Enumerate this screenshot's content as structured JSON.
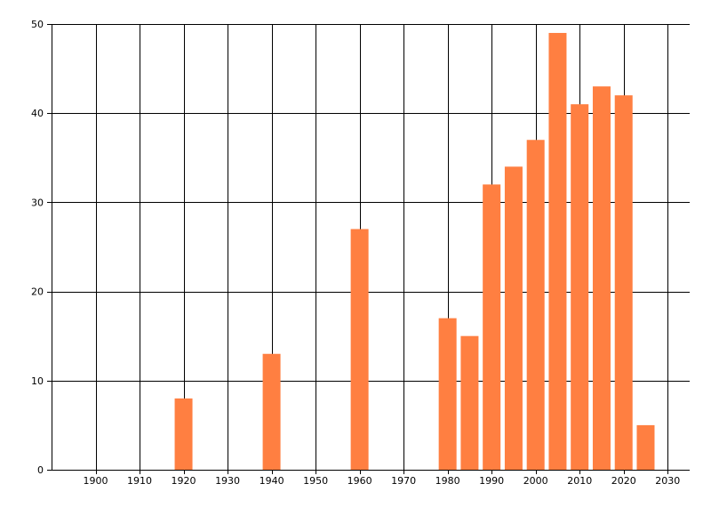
{
  "chart_data": {
    "type": "bar",
    "title": "",
    "xlabel": "",
    "ylabel": "",
    "x": [
      1920,
      1940,
      1960,
      1980,
      1985,
      1990,
      1995,
      2000,
      2005,
      2010,
      2015,
      2020,
      2025
    ],
    "values": [
      8,
      13,
      27,
      17,
      15,
      32,
      34,
      37,
      49,
      41,
      43,
      42,
      5
    ],
    "xlim": [
      1890,
      2035
    ],
    "ylim": [
      0,
      50
    ],
    "xticks": [
      1900,
      1910,
      1920,
      1930,
      1940,
      1950,
      1960,
      1970,
      1980,
      1990,
      2000,
      2010,
      2020,
      2030
    ],
    "yticks": [
      0,
      10,
      20,
      30,
      40,
      50
    ],
    "grid": true,
    "legend": "none",
    "bar_color": "#FF7F41",
    "grid_color": "#000000"
  }
}
